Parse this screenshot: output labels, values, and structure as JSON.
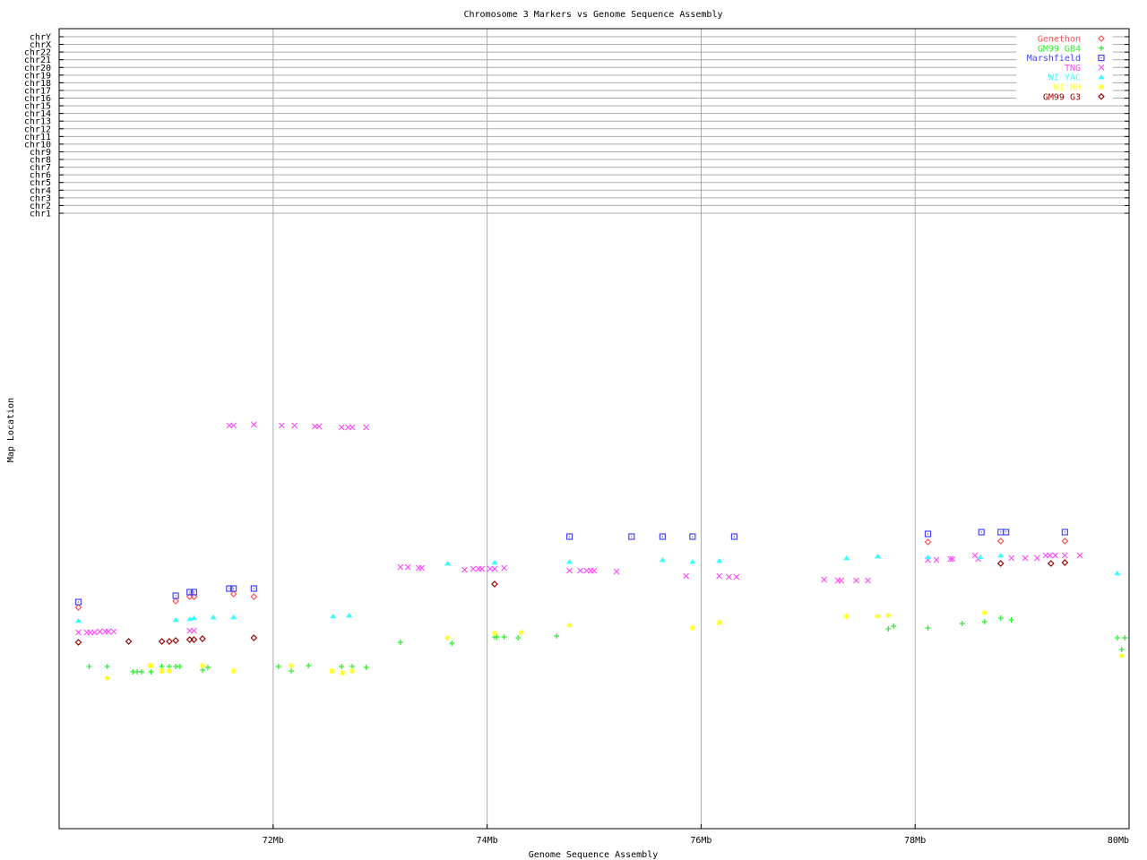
{
  "chart_data": {
    "type": "scatter",
    "title": "Chromosome 3 Markers vs Genome Sequence Assembly",
    "xlabel": "Genome Sequence Assembly",
    "ylabel": "Map Location",
    "xlim": [
      70,
      80
    ],
    "ylim": [
      0,
      68.5
    ],
    "x_ticks": [
      {
        "v": 72,
        "label": "72Mb"
      },
      {
        "v": 74,
        "label": "74Mb"
      },
      {
        "v": 76,
        "label": "76Mb"
      },
      {
        "v": 78,
        "label": "78Mb"
      },
      {
        "v": 80,
        "label": "80Mb"
      }
    ],
    "chromosome_labels": [
      "chrY",
      "chrX",
      "chr22",
      "chr21",
      "chr20",
      "chr19",
      "chr18",
      "chr17",
      "chr16",
      "chr15",
      "chr14",
      "chr13",
      "chr12",
      "chr11",
      "chr10",
      "chr9",
      "chr8",
      "chr7",
      "chr6",
      "chr5",
      "chr4",
      "chr3",
      "chr2",
      "chr1"
    ],
    "grid": true,
    "legend_position": "top-right",
    "series": [
      {
        "name": "Genethon",
        "color": "#ff5050",
        "marker": "diamond",
        "points": [
          [
            70.18,
            24.7
          ],
          [
            71.09,
            25.4
          ],
          [
            71.22,
            25.9
          ],
          [
            71.26,
            25.9
          ],
          [
            71.63,
            26.2
          ],
          [
            71.82,
            25.9
          ],
          [
            78.12,
            32.0
          ],
          [
            78.8,
            32.1
          ],
          [
            79.4,
            32.1
          ]
        ]
      },
      {
        "name": "GM99 GB4",
        "color": "#33ee33",
        "marker": "plus",
        "points": [
          [
            70.28,
            18.1
          ],
          [
            70.45,
            18.1
          ],
          [
            70.69,
            17.5
          ],
          [
            70.73,
            17.5
          ],
          [
            70.77,
            17.5
          ],
          [
            70.86,
            17.5
          ],
          [
            70.96,
            18.1
          ],
          [
            71.03,
            18.1
          ],
          [
            71.09,
            18.1
          ],
          [
            71.13,
            18.1
          ],
          [
            71.34,
            17.7
          ],
          [
            71.39,
            18.0
          ],
          [
            72.05,
            18.1
          ],
          [
            72.17,
            17.6
          ],
          [
            72.33,
            18.2
          ],
          [
            72.64,
            18.1
          ],
          [
            72.74,
            18.1
          ],
          [
            72.87,
            18.0
          ],
          [
            73.19,
            20.8
          ],
          [
            73.67,
            20.7
          ],
          [
            74.07,
            21.4
          ],
          [
            74.09,
            21.4
          ],
          [
            74.16,
            21.4
          ],
          [
            74.29,
            21.3
          ],
          [
            74.65,
            21.5
          ],
          [
            77.75,
            22.3
          ],
          [
            77.8,
            22.6
          ],
          [
            78.12,
            22.4
          ],
          [
            78.44,
            22.9
          ],
          [
            78.65,
            23.1
          ],
          [
            78.8,
            23.5
          ],
          [
            78.9,
            23.3
          ],
          [
            79.89,
            21.3
          ],
          [
            79.96,
            21.3
          ],
          [
            79.93,
            20.0
          ]
        ]
      },
      {
        "name": "Marshfield",
        "color": "#4444ff",
        "marker": "square",
        "points": [
          [
            70.18,
            25.3
          ],
          [
            71.09,
            26.0
          ],
          [
            71.22,
            26.4
          ],
          [
            71.26,
            26.4
          ],
          [
            71.59,
            26.8
          ],
          [
            71.63,
            26.8
          ],
          [
            71.82,
            26.8
          ],
          [
            74.77,
            32.6
          ],
          [
            75.35,
            32.6
          ],
          [
            75.64,
            32.6
          ],
          [
            75.92,
            32.6
          ],
          [
            76.31,
            32.6
          ],
          [
            78.12,
            32.9
          ],
          [
            78.62,
            33.1
          ],
          [
            78.8,
            33.1
          ],
          [
            78.85,
            33.1
          ],
          [
            79.4,
            33.1
          ]
        ]
      },
      {
        "name": "TNG",
        "color": "#ff44ff",
        "marker": "x",
        "points": [
          [
            70.18,
            21.9
          ],
          [
            70.26,
            21.9
          ],
          [
            70.29,
            21.9
          ],
          [
            70.33,
            21.9
          ],
          [
            70.38,
            22.0
          ],
          [
            70.43,
            22.0
          ],
          [
            70.46,
            22.0
          ],
          [
            70.51,
            22.0
          ],
          [
            71.22,
            22.1
          ],
          [
            71.26,
            22.1
          ],
          [
            71.59,
            45.0
          ],
          [
            71.63,
            45.0
          ],
          [
            71.82,
            45.1
          ],
          [
            72.08,
            45.0
          ],
          [
            72.2,
            45.0
          ],
          [
            72.39,
            44.9
          ],
          [
            72.43,
            44.9
          ],
          [
            72.64,
            44.8
          ],
          [
            72.7,
            44.8
          ],
          [
            72.74,
            44.8
          ],
          [
            72.87,
            44.8
          ],
          [
            73.19,
            29.2
          ],
          [
            73.26,
            29.2
          ],
          [
            73.36,
            29.1
          ],
          [
            73.39,
            29.1
          ],
          [
            73.79,
            28.9
          ],
          [
            73.87,
            29.0
          ],
          [
            73.92,
            29.0
          ],
          [
            73.95,
            29.0
          ],
          [
            74.03,
            29.0
          ],
          [
            74.07,
            29.0
          ],
          [
            74.16,
            29.1
          ],
          [
            74.77,
            28.8
          ],
          [
            74.87,
            28.8
          ],
          [
            74.93,
            28.8
          ],
          [
            74.97,
            28.8
          ],
          [
            75.0,
            28.8
          ],
          [
            75.21,
            28.7
          ],
          [
            75.86,
            28.2
          ],
          [
            76.17,
            28.2
          ],
          [
            76.26,
            28.1
          ],
          [
            76.33,
            28.1
          ],
          [
            77.15,
            27.8
          ],
          [
            77.28,
            27.7
          ],
          [
            77.31,
            27.7
          ],
          [
            77.45,
            27.7
          ],
          [
            77.56,
            27.7
          ],
          [
            78.12,
            30.0
          ],
          [
            78.2,
            30.0
          ],
          [
            78.33,
            30.1
          ],
          [
            78.35,
            30.1
          ],
          [
            78.56,
            30.5
          ],
          [
            78.59,
            30.1
          ],
          [
            78.9,
            30.2
          ],
          [
            79.03,
            30.2
          ],
          [
            79.14,
            30.2
          ],
          [
            79.22,
            30.5
          ],
          [
            79.26,
            30.5
          ],
          [
            79.31,
            30.5
          ],
          [
            79.4,
            30.5
          ],
          [
            79.54,
            30.5
          ]
        ]
      },
      {
        "name": "WI YAC",
        "color": "#33ffff",
        "marker": "triangle",
        "points": [
          [
            70.18,
            23.2
          ],
          [
            71.09,
            23.3
          ],
          [
            71.22,
            23.4
          ],
          [
            71.26,
            23.5
          ],
          [
            71.44,
            23.6
          ],
          [
            71.63,
            23.6
          ],
          [
            72.56,
            23.7
          ],
          [
            72.71,
            23.8
          ],
          [
            73.63,
            29.6
          ],
          [
            74.07,
            29.7
          ],
          [
            74.77,
            29.8
          ],
          [
            75.64,
            30.0
          ],
          [
            75.92,
            29.8
          ],
          [
            76.17,
            29.9
          ],
          [
            77.36,
            30.2
          ],
          [
            77.65,
            30.4
          ],
          [
            78.12,
            30.3
          ],
          [
            78.61,
            30.3
          ],
          [
            78.8,
            30.5
          ],
          [
            79.89,
            28.5
          ]
        ]
      },
      {
        "name": "WI RH",
        "color": "#ffff22",
        "marker": "asterisk",
        "points": [
          [
            70.45,
            16.8
          ],
          [
            70.85,
            18.2
          ],
          [
            70.86,
            18.2
          ],
          [
            70.96,
            17.6
          ],
          [
            71.03,
            17.6
          ],
          [
            71.34,
            18.2
          ],
          [
            71.63,
            17.6
          ],
          [
            72.17,
            18.2
          ],
          [
            72.55,
            17.6
          ],
          [
            72.65,
            17.4
          ],
          [
            72.74,
            17.6
          ],
          [
            73.63,
            21.3
          ],
          [
            74.07,
            21.8
          ],
          [
            74.32,
            21.9
          ],
          [
            74.77,
            22.7
          ],
          [
            75.92,
            22.4
          ],
          [
            76.17,
            23.0
          ],
          [
            77.36,
            23.7
          ],
          [
            77.65,
            23.7
          ],
          [
            77.75,
            23.8
          ],
          [
            78.65,
            24.1
          ],
          [
            79.93,
            19.3
          ]
        ]
      },
      {
        "name": "GM99 G3",
        "color": "#990000",
        "marker": "diamond",
        "points": [
          [
            70.18,
            20.8
          ],
          [
            70.65,
            20.9
          ],
          [
            70.96,
            20.9
          ],
          [
            71.03,
            20.9
          ],
          [
            71.09,
            21.0
          ],
          [
            71.22,
            21.1
          ],
          [
            71.26,
            21.1
          ],
          [
            71.34,
            21.2
          ],
          [
            71.82,
            21.3
          ],
          [
            74.07,
            27.3
          ],
          [
            78.8,
            29.6
          ],
          [
            79.27,
            29.6
          ],
          [
            79.4,
            29.7
          ]
        ]
      }
    ]
  }
}
